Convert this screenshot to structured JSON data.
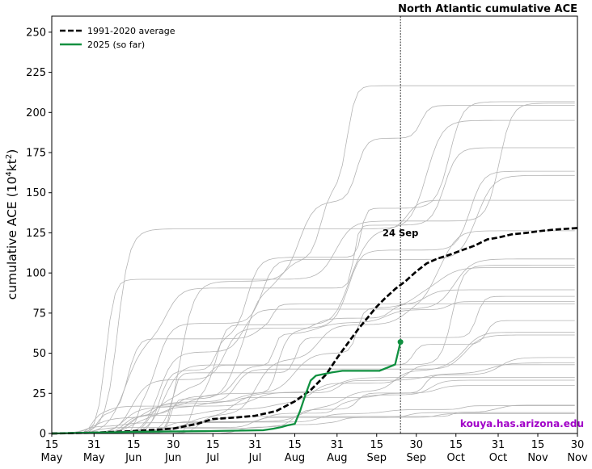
{
  "chart_data": {
    "type": "line",
    "title": "North Atlantic cumulative ACE",
    "ylabel": "cumulative ACE (10",
    "ylabel_sup": "4",
    "ylabel_unit": "kt",
    "ylabel_unit_sup": "2",
    "ylabel_end": ")",
    "ylim": [
      0,
      260
    ],
    "yticks": [
      0,
      25,
      50,
      75,
      100,
      125,
      150,
      175,
      200,
      225,
      250
    ],
    "xlim_days": [
      0,
      199
    ],
    "xticks": [
      {
        "day": 0,
        "day_label": "15",
        "month_label": "May"
      },
      {
        "day": 16,
        "day_label": "31",
        "month_label": "May"
      },
      {
        "day": 31,
        "day_label": "15",
        "month_label": "Jun"
      },
      {
        "day": 46,
        "day_label": "30",
        "month_label": "Jun"
      },
      {
        "day": 61,
        "day_label": "15",
        "month_label": "Jul"
      },
      {
        "day": 77,
        "day_label": "31",
        "month_label": "Jul"
      },
      {
        "day": 92,
        "day_label": "15",
        "month_label": "Aug"
      },
      {
        "day": 108,
        "day_label": "31",
        "month_label": "Aug"
      },
      {
        "day": 123,
        "day_label": "15",
        "month_label": "Sep"
      },
      {
        "day": 138,
        "day_label": "30",
        "month_label": "Sep"
      },
      {
        "day": 153,
        "day_label": "15",
        "month_label": "Oct"
      },
      {
        "day": 169,
        "day_label": "31",
        "month_label": "Oct"
      },
      {
        "day": 184,
        "day_label": "15",
        "month_label": "Nov"
      },
      {
        "day": 199,
        "day_label": "30",
        "month_label": "Nov"
      }
    ],
    "current_date": {
      "day": 132,
      "label": "24 Sep"
    },
    "legend_position": "top-left",
    "series": [
      {
        "name": "1991-2020 average",
        "color": "#000000",
        "style": "dashed",
        "x": [
          0,
          16,
          31,
          46,
          55,
          61,
          70,
          77,
          85,
          92,
          98,
          104,
          108,
          112,
          116,
          120,
          123,
          126,
          130,
          134,
          138,
          142,
          146,
          150,
          155,
          160,
          165,
          169,
          174,
          180,
          184,
          190,
          199
        ],
        "y": [
          0,
          0.5,
          1.5,
          3,
          6,
          9,
          10,
          11,
          14,
          20,
          27,
          37,
          47,
          56,
          65,
          73,
          79,
          84,
          90,
          95,
          101,
          106,
          109,
          111,
          114,
          117,
          121,
          122,
          124,
          125,
          126,
          127,
          128
        ]
      },
      {
        "name": "2025 (so far)",
        "color": "#109040",
        "style": "solid",
        "x": [
          0,
          30,
          60,
          80,
          84,
          87,
          89,
          92,
          94,
          96,
          98,
          100,
          103,
          106,
          110,
          120,
          124,
          127,
          130,
          131,
          132
        ],
        "y": [
          0,
          1,
          1.5,
          2,
          3,
          4,
          5,
          6,
          14,
          24,
          33,
          36,
          37,
          38,
          39,
          39,
          39,
          41,
          43,
          50,
          57
        ]
      }
    ]
  },
  "watermark": "kouya.has.arizona.edu",
  "colors": {
    "average": "#000000",
    "current": "#109040",
    "history": "#b4b4b4",
    "watermark": "#a100c8"
  }
}
